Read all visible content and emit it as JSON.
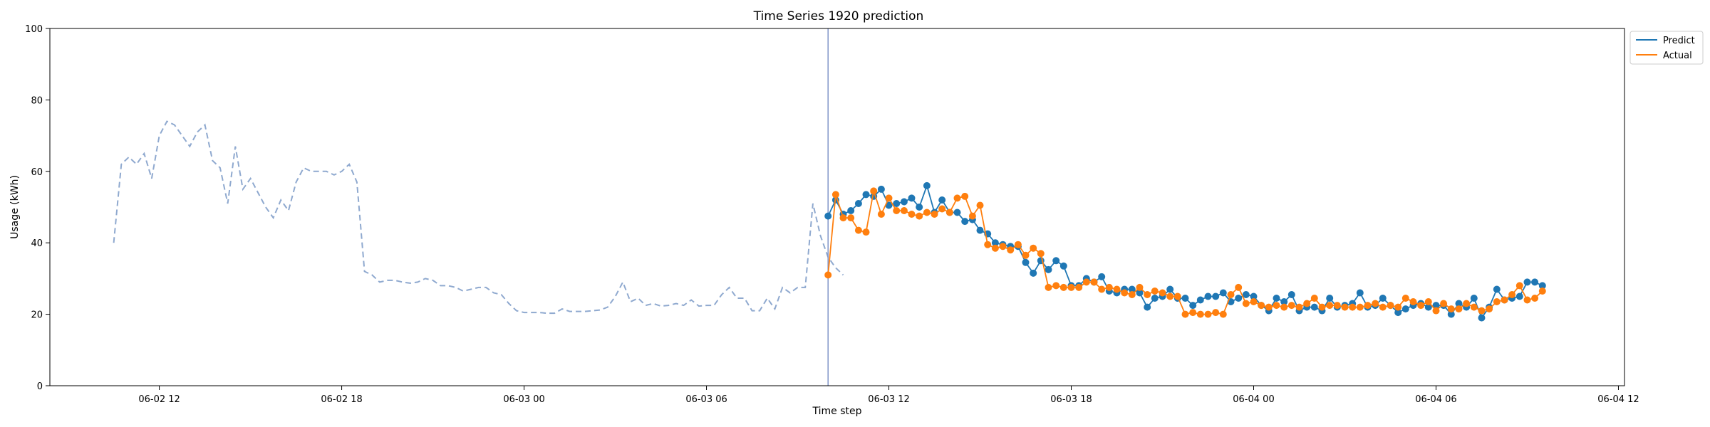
{
  "chart_data": {
    "type": "line",
    "title": "Time Series 1920 prediction",
    "xlabel": "Time step",
    "ylabel": "Usage (kWh)",
    "ylim": [
      0,
      100
    ],
    "yticks": [
      0,
      20,
      40,
      60,
      80,
      100
    ],
    "xlim": [
      "2024-06-02 08:24",
      "2024-06-04 12:12"
    ],
    "xticks": [
      {
        "label": "06-02 12",
        "t": "2024-06-02 12:00"
      },
      {
        "label": "06-02 18",
        "t": "2024-06-02 18:00"
      },
      {
        "label": "06-03 00",
        "t": "2024-06-03 00:00"
      },
      {
        "label": "06-03 06",
        "t": "2024-06-03 06:00"
      },
      {
        "label": "06-03 12",
        "t": "2024-06-03 12:00"
      },
      {
        "label": "06-03 18",
        "t": "2024-06-03 18:00"
      },
      {
        "label": "06-04 00",
        "t": "2024-06-04 00:00"
      },
      {
        "label": "06-04 06",
        "t": "2024-06-04 06:00"
      },
      {
        "label": "06-04 12",
        "t": "2024-06-04 12:00"
      }
    ],
    "forecast_start": "2024-06-03 10:00",
    "step_minutes": 15,
    "legend": [
      "Predict",
      "Actual"
    ],
    "legend_position": "outside-top-right",
    "grid": false,
    "history": {
      "start": "2024-06-02 10:30",
      "style": "dashed",
      "color": "#8fa9cf",
      "values": [
        40,
        62,
        64,
        62,
        65,
        58,
        70,
        74,
        73,
        70,
        67,
        71,
        73,
        63,
        61,
        51,
        67,
        55,
        58,
        54,
        50,
        47,
        52,
        49,
        57,
        61,
        60,
        60,
        60,
        59,
        60,
        62,
        57,
        32,
        31,
        29,
        29.5,
        29.5,
        29,
        28.7,
        29,
        30,
        29.5,
        28,
        28,
        27.5,
        26.5,
        27,
        27.5,
        27.5,
        26,
        25.5,
        23,
        21,
        20.5,
        20.5,
        20.5,
        20.3,
        20.3,
        21.5,
        20.8,
        20.8,
        20.8,
        21,
        21.2,
        22,
        25,
        29,
        23.5,
        24.5,
        22.5,
        23,
        22.3,
        22.5,
        23,
        22.5,
        24,
        22.3,
        22.5,
        22.5,
        25.5,
        27.5,
        24.5,
        24.5,
        21,
        21,
        24.5,
        21.5,
        27.5,
        26,
        27.5,
        27.5,
        51,
        42,
        36,
        33,
        31
      ]
    },
    "series": [
      {
        "name": "Predict",
        "color": "#1f77b4",
        "start": "2024-06-03 10:00",
        "values": [
          47.5,
          52,
          48,
          49,
          51,
          53.5,
          53,
          55,
          50.5,
          51,
          51.5,
          52.5,
          50,
          56,
          48.5,
          52,
          48.5,
          48.5,
          46,
          46.5,
          43.5,
          42.5,
          40,
          39.5,
          39,
          39,
          34.5,
          31.5,
          35,
          32.5,
          35,
          33.5,
          28,
          28,
          30,
          29,
          30.5,
          26.5,
          26,
          27,
          27,
          26,
          22,
          24.5,
          25,
          27,
          24.5,
          24.5,
          22.5,
          24,
          25,
          25,
          26,
          23.5,
          24.5,
          25.5,
          25,
          22.5,
          21,
          24.5,
          23.5,
          25.5,
          21,
          22,
          22,
          21,
          24.5,
          22,
          22.5,
          23,
          26,
          22,
          22.5,
          24.5,
          22.5,
          20.5,
          21.5,
          22.5,
          23,
          22,
          22.5,
          22.5,
          20,
          23,
          22,
          24.5,
          19,
          22,
          27,
          24,
          24.5,
          25,
          29,
          29,
          28
        ]
      },
      {
        "name": "Actual",
        "color": "#ff7f0e",
        "start": "2024-06-03 10:00",
        "values": [
          31,
          53.5,
          47,
          47,
          43.5,
          43,
          54.5,
          48,
          52.5,
          49,
          49,
          48,
          47.5,
          48.5,
          48,
          49.5,
          48.5,
          52.5,
          53,
          47.5,
          50.5,
          39.5,
          38.5,
          39,
          38,
          39.5,
          36.5,
          38.5,
          37,
          27.5,
          28,
          27.5,
          27.5,
          27.5,
          29,
          29,
          27,
          27.5,
          27,
          26,
          25.5,
          27.5,
          25.5,
          26.5,
          26,
          25,
          25,
          20,
          20.5,
          20,
          20,
          20.5,
          20,
          25.5,
          27.5,
          23,
          23.5,
          22.5,
          22,
          22.5,
          22,
          22.5,
          22,
          23,
          24.5,
          22,
          22.5,
          22.5,
          22,
          22,
          22,
          22.5,
          23,
          22,
          22.5,
          22,
          24.5,
          23.5,
          22.5,
          23.5,
          21,
          23,
          21.5,
          21.5,
          23,
          22,
          21,
          21.5,
          23.5,
          24,
          25.5,
          28,
          24,
          24.5,
          26.5
        ]
      }
    ]
  }
}
